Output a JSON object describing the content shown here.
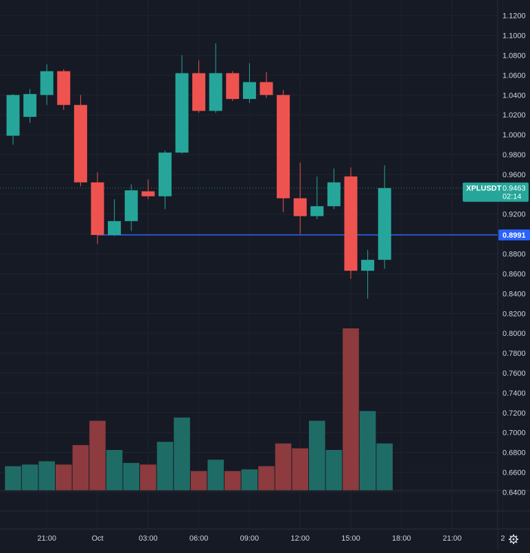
{
  "chart_data": {
    "type": "candlestick",
    "symbol": "XPLUSDT",
    "interval_minutes": 60,
    "x_tick_labels": [
      "21:00",
      "Oct",
      "03:00",
      "06:00",
      "09:00",
      "12:00",
      "15:00",
      "18:00",
      "21:00",
      "2"
    ],
    "y_tick_labels": [
      "1.1200",
      "1.1000",
      "1.0800",
      "1.0600",
      "1.0400",
      "1.0200",
      "1.0000",
      "0.9800",
      "0.9600",
      "0.9400",
      "0.9200",
      "0.9000",
      "0.8800",
      "0.8600",
      "0.8400",
      "0.8200",
      "0.8000",
      "0.7800",
      "0.7600",
      "0.7400",
      "0.7200",
      "0.7000",
      "0.6800",
      "0.6600",
      "0.6400"
    ],
    "ylim": [
      0.632,
      1.126
    ],
    "candles": [
      {
        "time": "Sep 30 19:00",
        "open": 0.999,
        "high": 1.041,
        "low": 0.99,
        "close": 1.04
      },
      {
        "time": "Sep 30 20:00",
        "open": 1.018,
        "high": 1.046,
        "low": 1.012,
        "close": 1.041
      },
      {
        "time": "Sep 30 21:00",
        "open": 1.04,
        "high": 1.071,
        "low": 1.03,
        "close": 1.064
      },
      {
        "time": "Sep 30 22:00",
        "open": 1.064,
        "high": 1.066,
        "low": 1.025,
        "close": 1.03
      },
      {
        "time": "Sep 30 23:00",
        "open": 1.03,
        "high": 1.04,
        "low": 0.948,
        "close": 0.952
      },
      {
        "time": "Oct 1 00:00",
        "open": 0.952,
        "high": 0.962,
        "low": 0.89,
        "close": 0.899
      },
      {
        "time": "Oct 1 01:00",
        "open": 0.899,
        "high": 0.935,
        "low": 0.898,
        "close": 0.913
      },
      {
        "time": "Oct 1 02:00",
        "open": 0.913,
        "high": 0.95,
        "low": 0.903,
        "close": 0.944
      },
      {
        "time": "Oct 1 03:00",
        "open": 0.943,
        "high": 0.955,
        "low": 0.935,
        "close": 0.938
      },
      {
        "time": "Oct 1 04:00",
        "open": 0.938,
        "high": 0.984,
        "low": 0.925,
        "close": 0.982
      },
      {
        "time": "Oct 1 05:00",
        "open": 0.982,
        "high": 1.08,
        "low": 0.981,
        "close": 1.062
      },
      {
        "time": "Oct 1 06:00",
        "open": 1.062,
        "high": 1.075,
        "low": 1.022,
        "close": 1.024
      },
      {
        "time": "Oct 1 07:00",
        "open": 1.024,
        "high": 1.092,
        "low": 1.022,
        "close": 1.062
      },
      {
        "time": "Oct 1 08:00",
        "open": 1.062,
        "high": 1.064,
        "low": 1.034,
        "close": 1.036
      },
      {
        "time": "Oct 1 09:00",
        "open": 1.036,
        "high": 1.072,
        "low": 1.032,
        "close": 1.053
      },
      {
        "time": "Oct 1 10:00",
        "open": 1.053,
        "high": 1.063,
        "low": 1.037,
        "close": 1.04
      },
      {
        "time": "Oct 1 11:00",
        "open": 1.04,
        "high": 1.045,
        "low": 0.922,
        "close": 0.936
      },
      {
        "time": "Oct 1 12:00",
        "open": 0.936,
        "high": 0.972,
        "low": 0.9,
        "close": 0.918
      },
      {
        "time": "Oct 1 13:00",
        "open": 0.918,
        "high": 0.958,
        "low": 0.915,
        "close": 0.928
      },
      {
        "time": "Oct 1 14:00",
        "open": 0.928,
        "high": 0.966,
        "low": 0.925,
        "close": 0.952
      },
      {
        "time": "Oct 1 15:00",
        "open": 0.958,
        "high": 0.967,
        "low": 0.855,
        "close": 0.863
      },
      {
        "time": "Oct 1 16:00",
        "open": 0.863,
        "high": 0.884,
        "low": 0.835,
        "close": 0.874
      },
      {
        "time": "Oct 1 17:00",
        "open": 0.874,
        "high": 0.969,
        "low": 0.865,
        "close": 0.9463
      }
    ],
    "volume": {
      "ylim": [
        0,
        100
      ],
      "values": [
        15,
        16,
        18,
        16,
        28,
        43,
        25,
        17,
        16,
        30,
        45,
        12,
        19,
        12,
        13,
        15,
        29,
        26,
        43,
        25,
        100,
        49,
        29
      ]
    },
    "price_lines": [
      {
        "value": "0.8991",
        "color": "#2962ff"
      }
    ],
    "current_price": {
      "label": "XPLUSDT",
      "value": "0.9463",
      "countdown": "02:14"
    },
    "colors": {
      "up": "#26a69a",
      "down": "#ef5350",
      "up_volume": "#1f6c66",
      "down_volume": "#8d3b3e",
      "background": "#161a25",
      "grid": "#20242f",
      "text": "#d1d4dc"
    },
    "grid": true,
    "icons": [
      "settings-gear-icon"
    ]
  }
}
